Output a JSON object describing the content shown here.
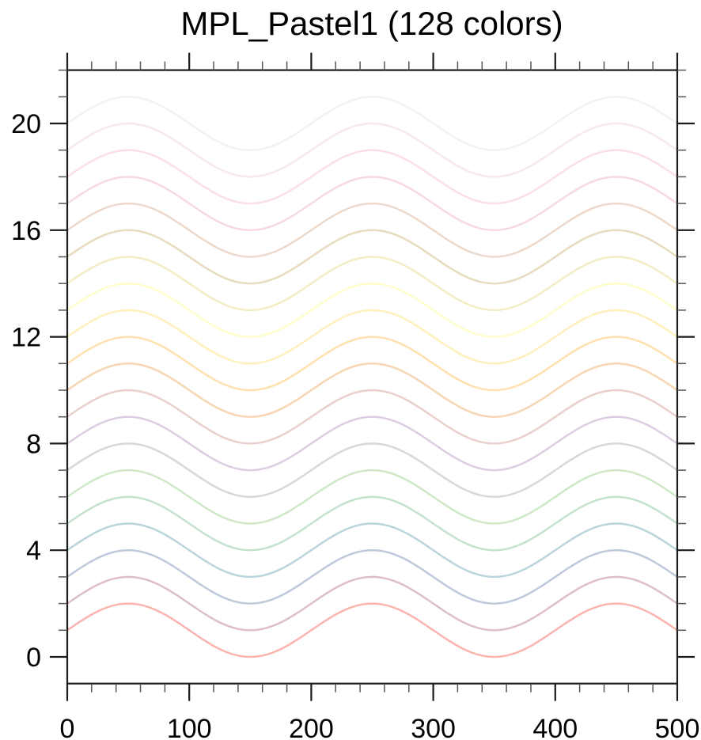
{
  "title": "MPL_Pastel1 (128 colors)",
  "chart_data": {
    "type": "line",
    "title": "MPL_Pastel1 (128 colors)",
    "subtitle": "",
    "xlabel": "",
    "ylabel": "",
    "xlim": [
      0,
      500
    ],
    "ylim": [
      -1,
      22
    ],
    "grid": false,
    "legend": "none",
    "x_major_ticks": [
      0,
      100,
      200,
      300,
      400,
      500
    ],
    "x_tick_labels": [
      "0",
      "100",
      "200",
      "300",
      "400",
      "500"
    ],
    "x_minor_step": 20,
    "y_major_ticks": [
      0,
      4,
      8,
      12,
      16,
      20
    ],
    "y_tick_labels": [
      "0",
      "4",
      "8",
      "12",
      "16",
      "20"
    ],
    "y_minor_step": 1,
    "palette_name": "MPL_Pastel1",
    "palette_size": 128,
    "curve_model": "y = offset + sin(2*pi*x / 200), x from 0 to 500",
    "wave_period": 200,
    "wave_amplitude": 1,
    "series": [
      {
        "offset": 1,
        "color": "#fbb4ae"
      },
      {
        "offset": 2,
        "color": "#ddbfc4"
      },
      {
        "offset": 3,
        "color": "#bec9db"
      },
      {
        "offset": 4,
        "color": "#bad5db"
      },
      {
        "offset": 5,
        "color": "#c4e2ce"
      },
      {
        "offset": 6,
        "color": "#cee8c8"
      },
      {
        "offset": 7,
        "color": "#d5dad5"
      },
      {
        "offset": 8,
        "color": "#ddcde2"
      },
      {
        "offset": 9,
        "color": "#ead0cd"
      },
      {
        "offset": 10,
        "color": "#f7d6b3"
      },
      {
        "offset": 11,
        "color": "#fee1ae"
      },
      {
        "offset": 12,
        "color": "#fff1be"
      },
      {
        "offset": 13,
        "color": "#fefdcb"
      },
      {
        "offset": 14,
        "color": "#f3edc5"
      },
      {
        "offset": 15,
        "color": "#e8dcbf"
      },
      {
        "offset": 16,
        "color": "#edd9cc"
      },
      {
        "offset": 17,
        "color": "#f7d9e0"
      },
      {
        "offset": 18,
        "color": "#fbdeed"
      },
      {
        "offset": 19,
        "color": "#f7e8f0"
      },
      {
        "offset": 20,
        "color": "#f2f2f2"
      }
    ]
  },
  "colors": {
    "background": "#ffffff",
    "frame": "#1b1b1b",
    "major_tick": "#1b1b1b",
    "minor_tick": "#555555",
    "text": "#000000"
  }
}
